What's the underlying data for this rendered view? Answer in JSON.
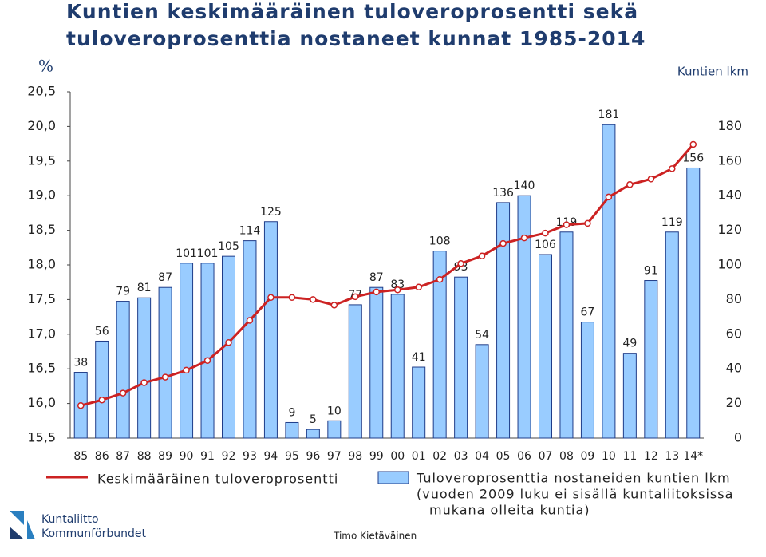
{
  "chart_data": {
    "type": "bar",
    "title": [
      "Kuntien keskimääräinen tuloveroprosentti sekä",
      "tuloveroprosenttia nostaneet kunnat 1985-2014"
    ],
    "y_label": "%",
    "y2_label": "Kuntien lkm",
    "categories": [
      "85",
      "86",
      "87",
      "88",
      "89",
      "90",
      "91",
      "92",
      "93",
      "94",
      "95",
      "96",
      "97",
      "98",
      "99",
      "00",
      "01",
      "02",
      "03",
      "04",
      "05",
      "06",
      "07",
      "08",
      "09",
      "10",
      "11",
      "12",
      "13",
      "14*"
    ],
    "series": [
      {
        "name": "Keskimääräinen tuloveroprosentti",
        "type": "line",
        "color": "#cc2222",
        "values": [
          15.97,
          16.05,
          16.15,
          16.3,
          16.38,
          16.48,
          16.62,
          16.88,
          17.2,
          17.53,
          17.53,
          17.5,
          17.42,
          17.54,
          17.61,
          17.64,
          17.68,
          17.79,
          18.02,
          18.13,
          18.31,
          18.39,
          18.46,
          18.58,
          18.6,
          18.98,
          19.16,
          19.24,
          19.39,
          19.74
        ]
      },
      {
        "name": "Tuloveroprosenttia nostaneiden kuntien lkm",
        "type": "bar",
        "axis": "y2",
        "color": "#99ccff",
        "values": [
          38,
          56,
          79,
          81,
          87,
          101,
          101,
          105,
          114,
          125,
          9,
          5,
          10,
          77,
          87,
          83,
          41,
          108,
          93,
          54,
          136,
          140,
          106,
          119,
          67,
          181,
          49,
          91,
          119,
          156
        ]
      }
    ],
    "legend_note": [
      "(vuoden 2009 luku ei sisällä kuntaliitoksissa",
      "mukana olleita kuntia)"
    ],
    "ylim": [
      15.5,
      20.5
    ],
    "yticks": [
      {
        "value": 15.5,
        "label": "15,5"
      },
      {
        "value": 16,
        "label": "16,0"
      },
      {
        "value": 16.5,
        "label": "16,5"
      },
      {
        "value": 17,
        "label": "17,0"
      },
      {
        "value": 17.5,
        "label": "17,5"
      },
      {
        "value": 18,
        "label": "18,0"
      },
      {
        "value": 18.5,
        "label": "18,5"
      },
      {
        "value": 19,
        "label": "19,0"
      },
      {
        "value": 19.5,
        "label": "19,5"
      },
      {
        "value": 20,
        "label": "20,0"
      },
      {
        "value": 20.5,
        "label": "20,5"
      }
    ],
    "y2lim": [
      0,
      200
    ],
    "y2ticks": [
      0,
      20,
      40,
      60,
      80,
      100,
      120,
      140,
      160,
      180
    ]
  },
  "footer": {
    "author": "Timo Kietäväinen",
    "logo": [
      "Kuntaliitto",
      "Kommunförbundet"
    ]
  }
}
